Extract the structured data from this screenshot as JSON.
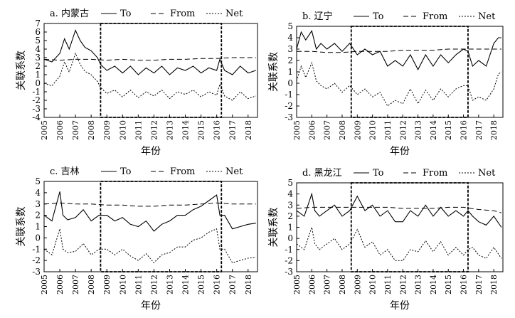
{
  "chart_data": [
    {
      "type": "line",
      "title": "a. 内蒙古",
      "xlabel": "年份",
      "ylabel": "关联系数",
      "ylim": [
        -4,
        7
      ],
      "yticks": [
        -4,
        -3,
        -2,
        -1,
        0,
        1,
        2,
        3,
        4,
        5,
        6,
        7
      ],
      "xlim": [
        2005,
        2018.6
      ],
      "xticks": [
        "2005",
        "2006",
        "2007",
        "2008",
        "2009",
        "2010",
        "2011",
        "2012",
        "2013",
        "2014",
        "2015",
        "2016",
        "2017",
        "2018"
      ],
      "grid": false,
      "legend_position": "top",
      "highlight": [
        2008.6,
        2016.3
      ],
      "series": [
        {
          "name": "To",
          "style": "solid",
          "x": [
            2005,
            2005.5,
            2006,
            2006.3,
            2006.6,
            2007,
            2007.3,
            2007.6,
            2008,
            2008.4,
            2008.6,
            2009,
            2009.5,
            2010,
            2010.5,
            2011,
            2011.5,
            2012,
            2012.5,
            2013,
            2013.5,
            2014,
            2014.5,
            2015,
            2015.5,
            2016,
            2016.2,
            2016.5,
            2017,
            2017.5,
            2018,
            2018.5
          ],
          "y": [
            2.8,
            2.5,
            3.5,
            5.2,
            4.0,
            6.2,
            5.0,
            4.2,
            3.8,
            3.0,
            2.2,
            1.5,
            2.0,
            1.2,
            2.0,
            1.0,
            1.8,
            1.2,
            2.0,
            1.0,
            1.8,
            1.5,
            2.0,
            1.2,
            1.8,
            1.5,
            2.8,
            1.5,
            1.0,
            2.0,
            1.2,
            1.5
          ]
        },
        {
          "name": "From",
          "style": "dashed",
          "x": [
            2005,
            2006,
            2007,
            2008,
            2009,
            2010,
            2011,
            2012,
            2013,
            2014,
            2015,
            2016,
            2017,
            2018,
            2018.5
          ],
          "y": [
            2.8,
            2.7,
            2.8,
            2.8,
            2.7,
            2.8,
            2.7,
            2.7,
            2.8,
            2.8,
            2.9,
            2.9,
            3.0,
            3.0,
            3.0
          ]
        },
        {
          "name": "Net",
          "style": "dotted",
          "x": [
            2005,
            2005.5,
            2006,
            2006.3,
            2006.6,
            2007,
            2007.3,
            2007.6,
            2008,
            2008.4,
            2008.6,
            2009,
            2009.5,
            2010,
            2010.5,
            2011,
            2011.5,
            2012,
            2012.5,
            2013,
            2013.5,
            2014,
            2014.5,
            2015,
            2015.5,
            2016,
            2016.2,
            2016.5,
            2017,
            2017.5,
            2018,
            2018.5
          ],
          "y": [
            0.0,
            -0.3,
            0.8,
            2.5,
            1.3,
            3.5,
            2.2,
            1.4,
            1.0,
            0.2,
            -0.5,
            -1.2,
            -0.8,
            -1.6,
            -0.8,
            -1.7,
            -1.0,
            -1.5,
            -0.8,
            -1.8,
            -1.0,
            -1.3,
            -0.8,
            -1.6,
            -1.0,
            -1.4,
            -0.1,
            -1.5,
            -2.0,
            -1.0,
            -1.8,
            -1.5
          ]
        }
      ]
    },
    {
      "type": "line",
      "title": "b. 辽宁",
      "xlabel": "年份",
      "ylabel": "关联系数",
      "ylim": [
        -3,
        5
      ],
      "yticks": [
        -3,
        -2,
        -1,
        0,
        1,
        2,
        3,
        4,
        5
      ],
      "xlim": [
        2005,
        2018.6
      ],
      "xticks": [
        "2005",
        "2006",
        "2007",
        "2008",
        "2009",
        "2010",
        "2011",
        "2012",
        "2013",
        "2014",
        "2015",
        "2016",
        "2017",
        "2018"
      ],
      "grid": false,
      "legend_position": "top",
      "highlight": [
        2008.6,
        2016.3
      ],
      "series": [
        {
          "name": "To",
          "style": "solid",
          "x": [
            2005,
            2005.3,
            2005.6,
            2006,
            2006.3,
            2006.6,
            2007,
            2007.5,
            2008,
            2008.5,
            2009,
            2009.5,
            2010,
            2010.5,
            2011,
            2011.5,
            2012,
            2012.5,
            2013,
            2013.5,
            2014,
            2014.5,
            2015,
            2015.5,
            2016,
            2016.3,
            2016.6,
            2017,
            2017.5,
            2018,
            2018.3,
            2018.5
          ],
          "y": [
            3.0,
            4.5,
            3.8,
            4.6,
            3.0,
            3.5,
            3.0,
            3.5,
            2.8,
            3.5,
            2.5,
            3.0,
            2.5,
            2.8,
            1.5,
            2.0,
            1.5,
            2.5,
            1.2,
            2.5,
            1.5,
            2.5,
            1.8,
            2.5,
            3.0,
            2.8,
            1.5,
            2.0,
            1.5,
            3.5,
            4.0,
            4.0
          ]
        },
        {
          "name": "From",
          "style": "dashed",
          "x": [
            2005,
            2006,
            2007,
            2008,
            2009,
            2010,
            2011,
            2012,
            2013,
            2014,
            2015,
            2016,
            2017,
            2018,
            2018.5
          ],
          "y": [
            2.8,
            2.8,
            2.7,
            2.7,
            2.8,
            2.8,
            2.8,
            2.9,
            2.9,
            2.9,
            3.0,
            3.0,
            3.0,
            3.0,
            3.0
          ]
        },
        {
          "name": "Net",
          "style": "dotted",
          "x": [
            2005,
            2005.3,
            2005.6,
            2006,
            2006.3,
            2006.6,
            2007,
            2007.5,
            2008,
            2008.5,
            2009,
            2009.5,
            2010,
            2010.5,
            2011,
            2011.5,
            2012,
            2012.5,
            2013,
            2013.5,
            2014,
            2014.5,
            2015,
            2015.5,
            2016,
            2016.3,
            2016.6,
            2017,
            2017.5,
            2018,
            2018.3,
            2018.5
          ],
          "y": [
            0.2,
            1.5,
            0.5,
            1.8,
            0.2,
            -0.2,
            -0.5,
            0.0,
            -0.8,
            -0.2,
            -1.0,
            -0.5,
            -1.2,
            -0.8,
            -2.0,
            -1.5,
            -1.8,
            -0.5,
            -1.8,
            -0.6,
            -1.5,
            -0.5,
            -1.2,
            -0.5,
            -0.2,
            -0.2,
            -1.5,
            -1.2,
            -1.5,
            -0.5,
            0.8,
            1.0
          ]
        }
      ]
    },
    {
      "type": "line",
      "title": "c. 吉林",
      "xlabel": "年份",
      "ylabel": "关联系数",
      "ylim": [
        -3,
        5
      ],
      "yticks": [
        -3,
        -2,
        -1,
        0,
        1,
        2,
        3,
        4,
        5
      ],
      "xlim": [
        2005,
        2018.6
      ],
      "xticks": [
        "2005",
        "2006",
        "2007",
        "2008",
        "2009",
        "2010",
        "2011",
        "2012",
        "2013",
        "2014",
        "2015",
        "2016",
        "2017",
        "2018"
      ],
      "grid": false,
      "legend_position": "top",
      "highlight": [
        2008.6,
        2016.3
      ],
      "series": [
        {
          "name": "To",
          "style": "solid",
          "x": [
            2005,
            2005.5,
            2006,
            2006.2,
            2006.5,
            2007,
            2007.5,
            2008,
            2008.5,
            2009,
            2009.5,
            2010,
            2010.5,
            2011,
            2011.5,
            2012,
            2012.5,
            2013,
            2013.5,
            2014,
            2014.5,
            2015,
            2015.5,
            2016,
            2016.2,
            2016.5,
            2017,
            2017.5,
            2018,
            2018.5
          ],
          "y": [
            2.0,
            1.5,
            4.1,
            2.0,
            1.6,
            1.8,
            2.5,
            1.5,
            2.0,
            2.0,
            1.5,
            1.8,
            1.2,
            1.0,
            1.5,
            0.6,
            1.2,
            1.5,
            2.0,
            2.0,
            2.5,
            2.8,
            3.3,
            3.8,
            2.0,
            2.0,
            0.8,
            1.0,
            1.2,
            1.3
          ]
        },
        {
          "name": "From",
          "style": "dashed",
          "x": [
            2005,
            2006,
            2007,
            2008,
            2009,
            2010,
            2011,
            2012,
            2013,
            2014,
            2015,
            2016,
            2017,
            2018,
            2018.5
          ],
          "y": [
            3.0,
            3.1,
            3.0,
            3.0,
            2.9,
            2.9,
            2.8,
            2.8,
            2.9,
            2.9,
            3.0,
            3.1,
            3.0,
            3.0,
            3.0
          ]
        },
        {
          "name": "Net",
          "style": "dotted",
          "x": [
            2005,
            2005.5,
            2006,
            2006.2,
            2006.5,
            2007,
            2007.5,
            2008,
            2008.5,
            2009,
            2009.5,
            2010,
            2010.5,
            2011,
            2011.5,
            2012,
            2012.5,
            2013,
            2013.5,
            2014,
            2014.5,
            2015,
            2015.5,
            2016,
            2016.2,
            2016.5,
            2017,
            2017.5,
            2018,
            2018.5
          ],
          "y": [
            -1.0,
            -1.5,
            0.8,
            -1.0,
            -1.3,
            -1.2,
            -0.5,
            -1.5,
            -1.0,
            -1.0,
            -1.5,
            -1.0,
            -1.6,
            -2.0,
            -1.4,
            -2.2,
            -1.5,
            -1.3,
            -0.8,
            -0.8,
            -0.2,
            0.0,
            0.5,
            0.8,
            -1.0,
            -1.0,
            -2.2,
            -2.0,
            -1.8,
            -1.7
          ]
        }
      ]
    },
    {
      "type": "line",
      "title": "d. 黑龙江",
      "xlabel": "年份",
      "ylabel": "关联系数",
      "ylim": [
        -3,
        5
      ],
      "yticks": [
        -3,
        -2,
        -1,
        0,
        1,
        2,
        3,
        4,
        5
      ],
      "xlim": [
        2005,
        2018.6
      ],
      "xticks": [
        "2005",
        "2006",
        "2007",
        "2008",
        "2009",
        "2010",
        "2011",
        "2012",
        "2013",
        "2014",
        "2015",
        "2016",
        "2017",
        "2018"
      ],
      "grid": false,
      "legend_position": "top",
      "highlight": [
        2008.6,
        2016.3
      ],
      "series": [
        {
          "name": "To",
          "style": "solid",
          "x": [
            2005,
            2005.5,
            2006,
            2006.2,
            2006.5,
            2007,
            2007.5,
            2008,
            2008.5,
            2009,
            2009.5,
            2010,
            2010.5,
            2011,
            2011.5,
            2012,
            2012.5,
            2013,
            2013.5,
            2014,
            2014.5,
            2015,
            2015.5,
            2016,
            2016.3,
            2016.6,
            2017,
            2017.5,
            2018,
            2018.5
          ],
          "y": [
            2.5,
            2.0,
            4.0,
            2.5,
            2.0,
            2.5,
            3.0,
            2.0,
            2.5,
            3.8,
            2.5,
            3.0,
            2.0,
            2.5,
            1.5,
            1.5,
            2.5,
            2.0,
            3.0,
            2.0,
            2.8,
            2.0,
            2.5,
            2.0,
            2.5,
            2.0,
            1.5,
            1.2,
            2.0,
            1.0
          ]
        },
        {
          "name": "From",
          "style": "dashed",
          "x": [
            2005,
            2006,
            2007,
            2008,
            2009,
            2010,
            2011,
            2012,
            2013,
            2014,
            2015,
            2016,
            2017,
            2018,
            2018.5
          ],
          "y": [
            2.7,
            2.8,
            2.8,
            2.8,
            2.8,
            2.8,
            2.8,
            2.7,
            2.7,
            2.7,
            2.8,
            2.8,
            2.6,
            2.5,
            2.3
          ]
        },
        {
          "name": "Net",
          "style": "dotted",
          "x": [
            2005,
            2005.5,
            2006,
            2006.2,
            2006.5,
            2007,
            2007.5,
            2008,
            2008.5,
            2009,
            2009.5,
            2010,
            2010.5,
            2011,
            2011.5,
            2012,
            2012.5,
            2013,
            2013.5,
            2014,
            2014.5,
            2015,
            2015.5,
            2016,
            2016.3,
            2016.6,
            2017,
            2017.5,
            2018,
            2018.5
          ],
          "y": [
            -0.5,
            -1.0,
            1.0,
            -0.5,
            -1.0,
            -0.5,
            0.0,
            -1.0,
            -0.5,
            0.8,
            -0.8,
            -0.3,
            -1.5,
            -1.0,
            -2.0,
            -2.0,
            -1.0,
            -1.2,
            -0.2,
            -1.2,
            -0.3,
            -1.5,
            -0.8,
            -1.5,
            -1.0,
            -0.8,
            -1.5,
            -1.8,
            -0.8,
            -1.8
          ]
        }
      ]
    }
  ]
}
